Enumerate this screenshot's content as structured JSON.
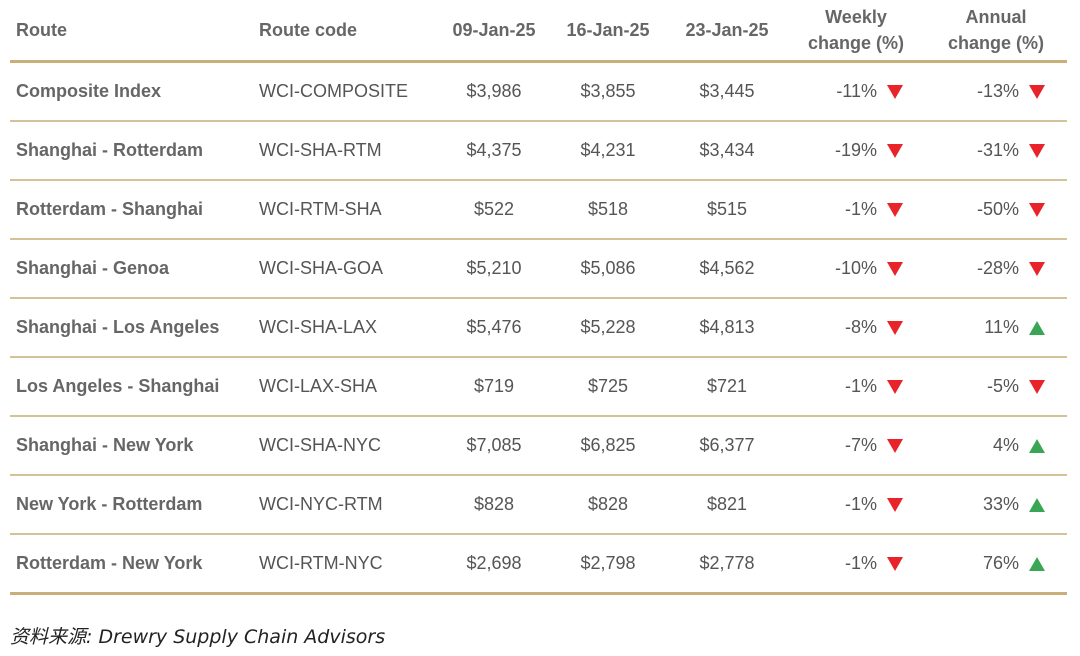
{
  "chart_data": {
    "type": "table",
    "columns": [
      "Route",
      "Route code",
      "09-Jan-25",
      "16-Jan-25",
      "23-Jan-25",
      "Weekly change (%)",
      "Annual change (%)"
    ],
    "header": {
      "route": "Route",
      "code": "Route code",
      "w1": "09-Jan-25",
      "w2": "16-Jan-25",
      "w3": "23-Jan-25",
      "weekly_line1": "Weekly",
      "weekly_line2": "change (%)",
      "annual_line1": "Annual",
      "annual_line2": "change (%)"
    },
    "rows": [
      {
        "route": "Composite Index",
        "code": "WCI-COMPOSITE",
        "w1": "$3,986",
        "w2": "$3,855",
        "w3": "$3,445",
        "weekly": "-11%",
        "weekly_dir": "down",
        "annual": "-13%",
        "annual_dir": "down"
      },
      {
        "route": "Shanghai - Rotterdam",
        "code": "WCI-SHA-RTM",
        "w1": "$4,375",
        "w2": "$4,231",
        "w3": "$3,434",
        "weekly": "-19%",
        "weekly_dir": "down",
        "annual": "-31%",
        "annual_dir": "down"
      },
      {
        "route": "Rotterdam - Shanghai",
        "code": "WCI-RTM-SHA",
        "w1": "$522",
        "w2": "$518",
        "w3": "$515",
        "weekly": "-1%",
        "weekly_dir": "down",
        "annual": "-50%",
        "annual_dir": "down"
      },
      {
        "route": "Shanghai - Genoa",
        "code": "WCI-SHA-GOA",
        "w1": "$5,210",
        "w2": "$5,086",
        "w3": "$4,562",
        "weekly": "-10%",
        "weekly_dir": "down",
        "annual": "-28%",
        "annual_dir": "down"
      },
      {
        "route": "Shanghai - Los Angeles",
        "code": "WCI-SHA-LAX",
        "w1": "$5,476",
        "w2": "$5,228",
        "w3": "$4,813",
        "weekly": "-8%",
        "weekly_dir": "down",
        "annual": "11%",
        "annual_dir": "up"
      },
      {
        "route": "Los Angeles - Shanghai",
        "code": "WCI-LAX-SHA",
        "w1": "$719",
        "w2": "$725",
        "w3": "$721",
        "weekly": "-1%",
        "weekly_dir": "down",
        "annual": "-5%",
        "annual_dir": "down"
      },
      {
        "route": "Shanghai - New York",
        "code": "WCI-SHA-NYC",
        "w1": "$7,085",
        "w2": "$6,825",
        "w3": "$6,377",
        "weekly": "-7%",
        "weekly_dir": "down",
        "annual": "4%",
        "annual_dir": "up"
      },
      {
        "route": "New York - Rotterdam",
        "code": "WCI-NYC-RTM",
        "w1": "$828",
        "w2": "$828",
        "w3": "$821",
        "weekly": "-1%",
        "weekly_dir": "down",
        "annual": "33%",
        "annual_dir": "up"
      },
      {
        "route": "Rotterdam - New York",
        "code": "WCI-RTM-NYC",
        "w1": "$2,698",
        "w2": "$2,798",
        "w3": "$2,778",
        "weekly": "-1%",
        "weekly_dir": "down",
        "annual": "76%",
        "annual_dir": "up"
      }
    ],
    "colors": {
      "down": "#e8232a",
      "up": "#3aa655",
      "rule": "#c9b07a"
    },
    "icons": {
      "down": "triangle-down-icon",
      "up": "triangle-up-icon"
    }
  },
  "source": "资料来源: Drewry Supply Chain Advisors"
}
